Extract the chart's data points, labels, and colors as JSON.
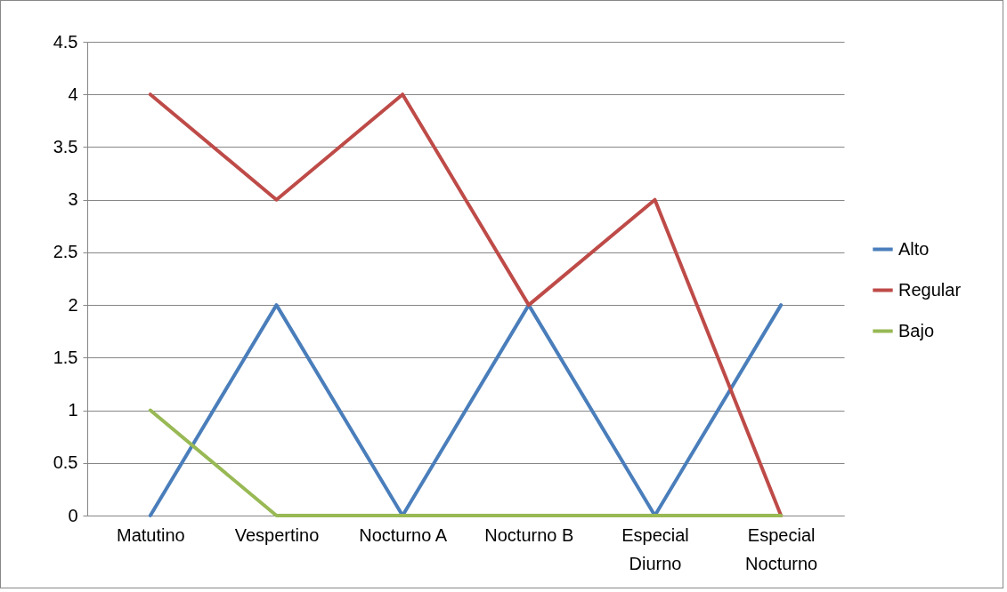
{
  "chart_data": {
    "type": "line",
    "categories": [
      "Matutino",
      "Vespertino",
      "Nocturno A",
      "Nocturno B",
      "Especial Diurno",
      "Especial Nocturno"
    ],
    "series": [
      {
        "name": "Alto",
        "color": "#4a7ebb",
        "values": [
          0,
          2,
          0,
          2,
          0,
          2
        ]
      },
      {
        "name": "Regular",
        "color": "#be4b48",
        "values": [
          4,
          3,
          4,
          2,
          3,
          0
        ]
      },
      {
        "name": "Bajo",
        "color": "#98b954",
        "values": [
          1,
          0,
          0,
          0,
          0,
          0
        ]
      }
    ],
    "ylim": [
      0,
      4.5
    ],
    "yticks": [
      0,
      0.5,
      1,
      1.5,
      2,
      2.5,
      3,
      3.5,
      4,
      4.5
    ],
    "grid": "y",
    "legend": "right",
    "marker": "none",
    "line_style": "solid"
  }
}
